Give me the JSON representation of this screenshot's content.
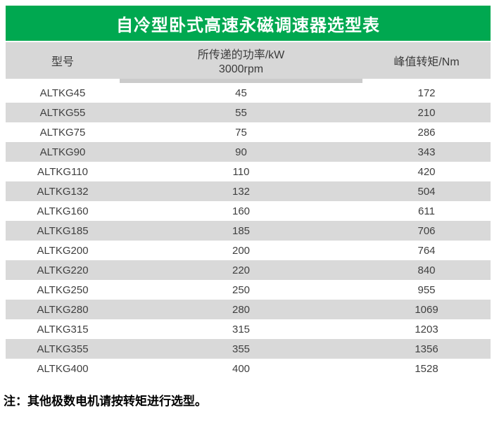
{
  "title": "自冷型卧式高速永磁调速器选型表",
  "table": {
    "headers": {
      "model": "型号",
      "power_line1": "所传递的功率/kW",
      "power_line2": "3000rpm",
      "torque": "峰值转矩/Nm"
    },
    "rows": [
      {
        "model": "ALTKG45",
        "power": "45",
        "torque": "172"
      },
      {
        "model": "ALTKG55",
        "power": "55",
        "torque": "210"
      },
      {
        "model": "ALTKG75",
        "power": "75",
        "torque": "286"
      },
      {
        "model": "ALTKG90",
        "power": "90",
        "torque": "343"
      },
      {
        "model": "ALTKG110",
        "power": "110",
        "torque": "420"
      },
      {
        "model": "ALTKG132",
        "power": "132",
        "torque": "504"
      },
      {
        "model": "ALTKG160",
        "power": "160",
        "torque": "611"
      },
      {
        "model": "ALTKG185",
        "power": "185",
        "torque": "706"
      },
      {
        "model": "ALTKG200",
        "power": "200",
        "torque": "764"
      },
      {
        "model": "ALTKG220",
        "power": "220",
        "torque": "840"
      },
      {
        "model": "ALTKG250",
        "power": "250",
        "torque": "955"
      },
      {
        "model": "ALTKG280",
        "power": "280",
        "torque": "1069"
      },
      {
        "model": "ALTKG315",
        "power": "315",
        "torque": "1203"
      },
      {
        "model": "ALTKG355",
        "power": "355",
        "torque": "1356"
      },
      {
        "model": "ALTKG400",
        "power": "400",
        "torque": "1528"
      }
    ]
  },
  "note": "注：其他极数电机请按转矩进行选型。",
  "colors": {
    "accent_green": "#00a850",
    "header_gray": "#d7d7d7",
    "zebra_gray": "#d9d9d9",
    "strip_gray": "#cbcbcb"
  }
}
